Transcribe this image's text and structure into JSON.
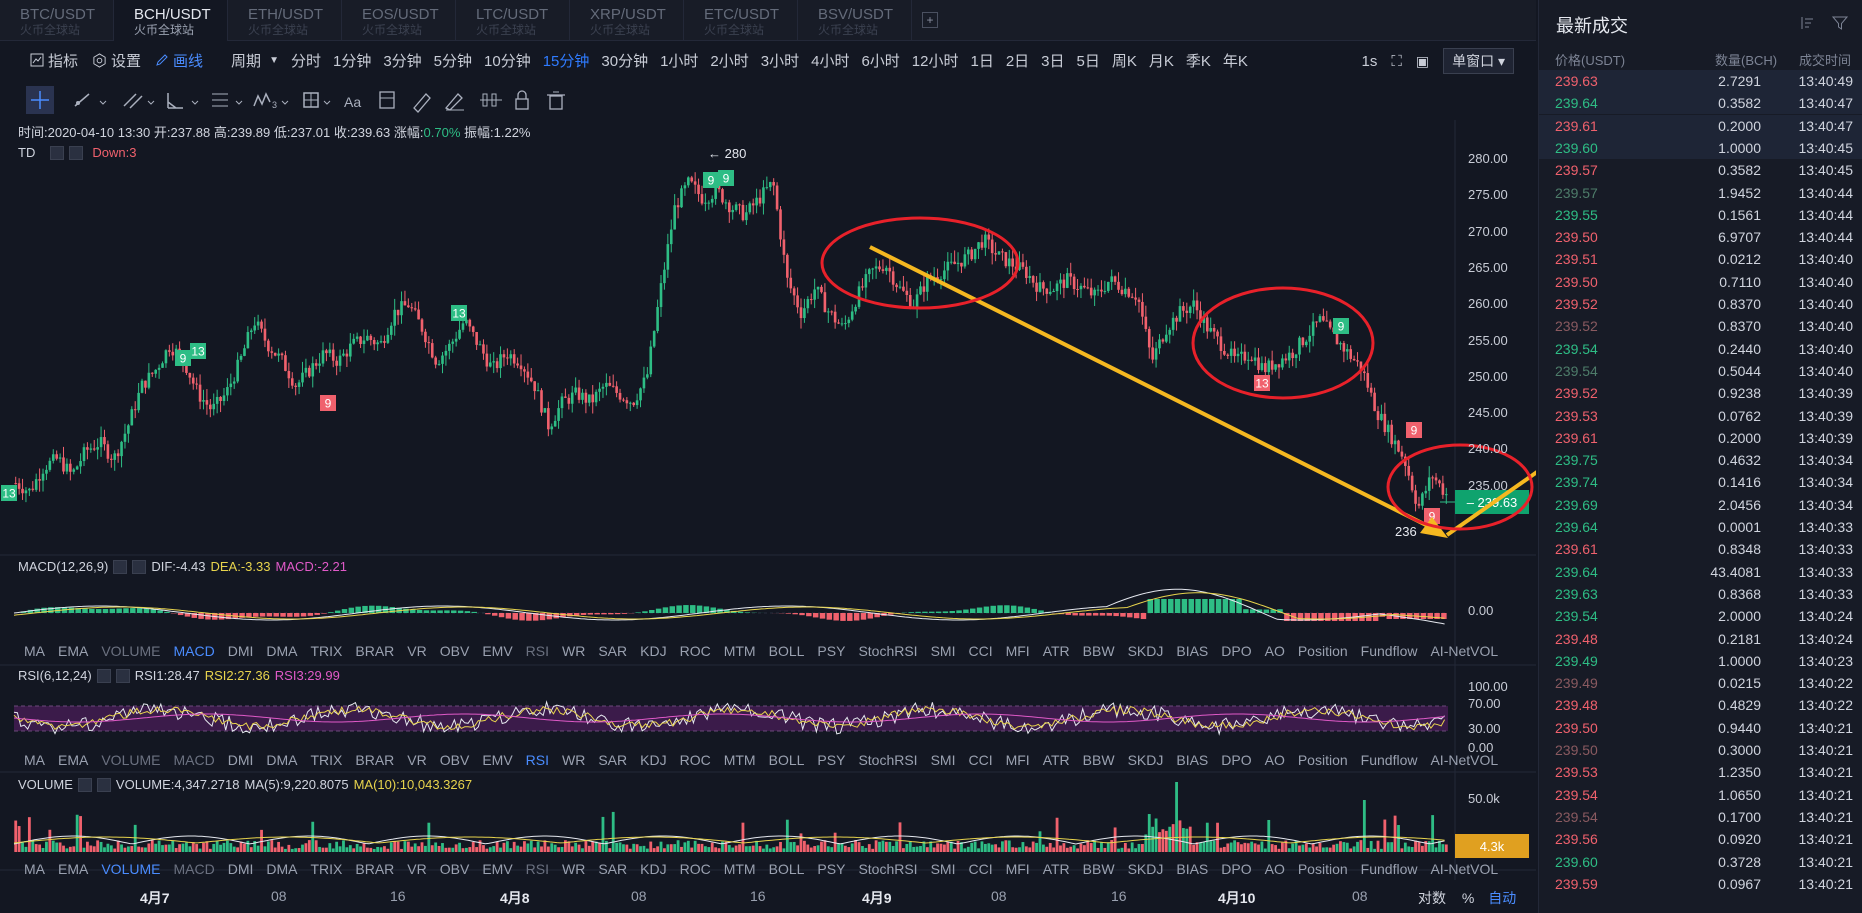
{
  "tabs": [
    {
      "pair": "BTC/USDT",
      "sub": "火币全球站"
    },
    {
      "pair": "BCH/USDT",
      "sub": "火币全球站",
      "active": true
    },
    {
      "pair": "ETH/USDT",
      "sub": "火币全球站"
    },
    {
      "pair": "EOS/USDT",
      "sub": "火币全球站"
    },
    {
      "pair": "LTC/USDT",
      "sub": "火币全球站"
    },
    {
      "pair": "XRP/USDT",
      "sub": "火币全球站"
    },
    {
      "pair": "ETC/USDT",
      "sub": "火币全球站"
    },
    {
      "pair": "BSV/USDT",
      "sub": "火币全球站"
    }
  ],
  "toolbar": {
    "indicators": "指标",
    "settings": "设置",
    "draw": "画线",
    "period": "周期",
    "periods": [
      "分时",
      "1分钟",
      "3分钟",
      "5分钟",
      "10分钟",
      "15分钟",
      "30分钟",
      "1小时",
      "2小时",
      "3小时",
      "4小时",
      "6小时",
      "12小时",
      "1日",
      "2日",
      "3日",
      "5日",
      "周K",
      "月K",
      "季K",
      "年K"
    ],
    "active_period": "15分钟",
    "interval": "1s",
    "window": "单窗口"
  },
  "info": {
    "time": "时间:2020-04-10 13:30",
    "open": "开:237.88",
    "high": "高:239.89",
    "low": "低:237.01",
    "close": "收:239.63",
    "change_label": "涨幅:",
    "change": "0.70%",
    "amp": "振幅:1.22%"
  },
  "td": {
    "name": "TD",
    "down": "Down:3"
  },
  "price_axis": [
    "280.00",
    "275.00",
    "270.00",
    "265.00",
    "260.00",
    "255.00",
    "250.00",
    "245.00",
    "240.00",
    "235.00"
  ],
  "last_price": "239.63",
  "hi_marker": "280",
  "lo_marker": "236",
  "td_marks": [
    "9",
    "13",
    "9",
    "13",
    "9",
    "9",
    "13",
    "9",
    "9",
    "9",
    "13"
  ],
  "macd": {
    "name": "MACD(12,26,9)",
    "dif": "DIF:-4.43",
    "dea": "DEA:-3.33",
    "macd": "MACD:-2.21",
    "axis": "0.00"
  },
  "rsi": {
    "name": "RSI(6,12,24)",
    "rsi1": "RSI1:28.47",
    "rsi2": "RSI2:27.36",
    "rsi3": "RSI3:29.99",
    "axis": [
      "100.00",
      "70.00",
      "30.00",
      "0.00"
    ]
  },
  "volume": {
    "name": "VOLUME",
    "vol": "VOLUME:4,347.2718",
    "ma5": "MA(5):9,220.8075",
    "ma10": "MA(10):10,043.3267",
    "axis": "50.0k",
    "last": "4.3k"
  },
  "ind_tabs": [
    "MA",
    "EMA",
    "VOLUME",
    "MACD",
    "DMI",
    "DMA",
    "TRIX",
    "BRAR",
    "VR",
    "OBV",
    "EMV",
    "RSI",
    "WR",
    "SAR",
    "KDJ",
    "ROC",
    "MTM",
    "BOLL",
    "PSY",
    "StochRSI",
    "SMI",
    "CCI",
    "MFI",
    "ATR",
    "BBW",
    "SKDJ",
    "BIAS",
    "DPO",
    "AO",
    "Position",
    "Fundflow",
    "AI-NetVOL"
  ],
  "time_axis": [
    "4月7",
    "08",
    "16",
    "4月8",
    "08",
    "16",
    "4月9",
    "08",
    "16",
    "4月10",
    "08"
  ],
  "axis_opts": {
    "log": "对数",
    "pct": "%",
    "auto": "自动"
  },
  "trades": {
    "title": "最新成交",
    "col_price": "价格(USDT)",
    "col_qty": "数量(BCH)",
    "col_time": "成交时间",
    "rows": [
      {
        "p": "239.63",
        "q": "2.7291",
        "t": "13:40:49",
        "c": "down",
        "hl": true
      },
      {
        "p": "239.64",
        "q": "0.3582",
        "t": "13:40:47",
        "c": "up",
        "hl": true
      },
      {
        "p": "239.61",
        "q": "0.2000",
        "t": "13:40:47",
        "c": "down",
        "hl": true
      },
      {
        "p": "239.60",
        "q": "1.0000",
        "t": "13:40:45",
        "c": "up",
        "hl": true
      },
      {
        "p": "239.57",
        "q": "0.3582",
        "t": "13:40:45",
        "c": "down"
      },
      {
        "p": "239.57",
        "q": "1.9452",
        "t": "13:40:44",
        "c": "up-dim"
      },
      {
        "p": "239.55",
        "q": "0.1561",
        "t": "13:40:44",
        "c": "up"
      },
      {
        "p": "239.50",
        "q": "6.9707",
        "t": "13:40:44",
        "c": "down"
      },
      {
        "p": "239.51",
        "q": "0.0212",
        "t": "13:40:40",
        "c": "down"
      },
      {
        "p": "239.50",
        "q": "0.7110",
        "t": "13:40:40",
        "c": "down"
      },
      {
        "p": "239.52",
        "q": "0.8370",
        "t": "13:40:40",
        "c": "down"
      },
      {
        "p": "239.52",
        "q": "0.8370",
        "t": "13:40:40",
        "c": "down-dim"
      },
      {
        "p": "239.54",
        "q": "0.2440",
        "t": "13:40:40",
        "c": "up"
      },
      {
        "p": "239.54",
        "q": "0.5044",
        "t": "13:40:40",
        "c": "up-dim"
      },
      {
        "p": "239.52",
        "q": "0.9238",
        "t": "13:40:39",
        "c": "down"
      },
      {
        "p": "239.53",
        "q": "0.0762",
        "t": "13:40:39",
        "c": "down"
      },
      {
        "p": "239.61",
        "q": "0.2000",
        "t": "13:40:39",
        "c": "down"
      },
      {
        "p": "239.75",
        "q": "0.4632",
        "t": "13:40:34",
        "c": "up"
      },
      {
        "p": "239.74",
        "q": "0.1416",
        "t": "13:40:34",
        "c": "up"
      },
      {
        "p": "239.69",
        "q": "2.0456",
        "t": "13:40:34",
        "c": "up"
      },
      {
        "p": "239.64",
        "q": "0.0001",
        "t": "13:40:33",
        "c": "up"
      },
      {
        "p": "239.61",
        "q": "0.8348",
        "t": "13:40:33",
        "c": "down"
      },
      {
        "p": "239.64",
        "q": "43.4081",
        "t": "13:40:33",
        "c": "up"
      },
      {
        "p": "239.63",
        "q": "0.8368",
        "t": "13:40:33",
        "c": "up"
      },
      {
        "p": "239.54",
        "q": "2.0000",
        "t": "13:40:24",
        "c": "up"
      },
      {
        "p": "239.48",
        "q": "0.2181",
        "t": "13:40:24",
        "c": "down"
      },
      {
        "p": "239.49",
        "q": "1.0000",
        "t": "13:40:23",
        "c": "up"
      },
      {
        "p": "239.49",
        "q": "0.0215",
        "t": "13:40:22",
        "c": "down-dim"
      },
      {
        "p": "239.48",
        "q": "0.4829",
        "t": "13:40:22",
        "c": "down"
      },
      {
        "p": "239.50",
        "q": "0.9440",
        "t": "13:40:21",
        "c": "down"
      },
      {
        "p": "239.50",
        "q": "0.3000",
        "t": "13:40:21",
        "c": "down-dim"
      },
      {
        "p": "239.53",
        "q": "1.2350",
        "t": "13:40:21",
        "c": "down"
      },
      {
        "p": "239.54",
        "q": "1.0650",
        "t": "13:40:21",
        "c": "down"
      },
      {
        "p": "239.54",
        "q": "0.1700",
        "t": "13:40:21",
        "c": "down-dim"
      },
      {
        "p": "239.56",
        "q": "0.0920",
        "t": "13:40:21",
        "c": "down"
      },
      {
        "p": "239.60",
        "q": "0.3728",
        "t": "13:40:21",
        "c": "up"
      },
      {
        "p": "239.59",
        "q": "0.0967",
        "t": "13:40:21",
        "c": "down"
      }
    ]
  },
  "chart_data": {
    "type": "candlestick",
    "symbol": "BCH/USDT",
    "interval": "15分钟",
    "ylim": [
      234,
      282
    ],
    "close_path": [
      241,
      240,
      243,
      244,
      242,
      245,
      246,
      244,
      248,
      253,
      255,
      258,
      256,
      252,
      250,
      252,
      256,
      261,
      258,
      256,
      253,
      255,
      257,
      256,
      258,
      259,
      258,
      262,
      263,
      260,
      256,
      258,
      261,
      258,
      255,
      257,
      256,
      253,
      248,
      251,
      252,
      251,
      253,
      252,
      251,
      254,
      265,
      275,
      278,
      276,
      277,
      275,
      274,
      276,
      278,
      266,
      262,
      265,
      262,
      260,
      264,
      267,
      268,
      265,
      263,
      266,
      267,
      268,
      269,
      271,
      269,
      268,
      267,
      265,
      265,
      266,
      265,
      264,
      266,
      265,
      264,
      256,
      260,
      262,
      263,
      260,
      258,
      256,
      257,
      255,
      256,
      257,
      259,
      261,
      259,
      257,
      255,
      250,
      247,
      244,
      238,
      242,
      239.6
    ]
  }
}
